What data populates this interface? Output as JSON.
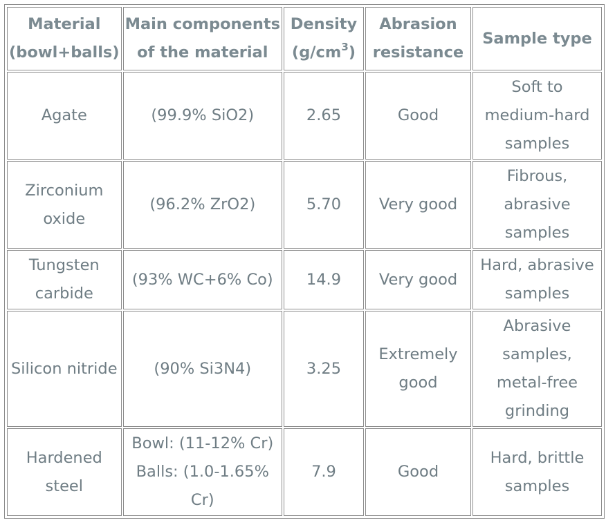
{
  "table": {
    "headers": [
      {
        "lines": [
          "Material",
          "(bowl+balls)"
        ]
      },
      {
        "lines": [
          "Main components",
          "of the material"
        ]
      },
      {
        "lines": [
          "Density"
        ],
        "unit_pre": "(g/cm",
        "unit_sup": "3",
        "unit_post": ")"
      },
      {
        "lines": [
          "Abrasion",
          "resistance"
        ]
      },
      {
        "lines": [
          "Sample type"
        ]
      }
    ],
    "rows": [
      {
        "material": [
          "Agate"
        ],
        "components": [
          "(99.9% SiO2)"
        ],
        "density": "2.65",
        "abrasion": [
          "Good"
        ],
        "sample": [
          "Soft to",
          "medium-hard",
          "samples"
        ]
      },
      {
        "material": [
          "Zirconium",
          "oxide"
        ],
        "components": [
          "(96.2% ZrO2)"
        ],
        "density": "5.70",
        "abrasion": [
          "Very good"
        ],
        "sample": [
          "Fibrous,",
          "abrasive",
          "samples"
        ]
      },
      {
        "material": [
          "Tungsten",
          "carbide"
        ],
        "components": [
          "(93% WC+6% Co)"
        ],
        "density": "14.9",
        "abrasion": [
          "Very good"
        ],
        "sample": [
          "Hard, abrasive",
          "samples"
        ]
      },
      {
        "material": [
          "Silicon nitride"
        ],
        "components": [
          "(90% Si3N4)"
        ],
        "density": "3.25",
        "abrasion": [
          "Extremely",
          "good"
        ],
        "sample": [
          "Abrasive",
          "samples,",
          "metal-free",
          "grinding"
        ]
      },
      {
        "material": [
          "Hardened",
          "steel"
        ],
        "components": [
          "Bowl: (11-12% Cr)",
          "Balls: (1.0-1.65%",
          "Cr)"
        ],
        "density": "7.9",
        "abrasion": [
          "Good"
        ],
        "sample": [
          "Hard, brittle",
          "samples"
        ]
      }
    ]
  }
}
